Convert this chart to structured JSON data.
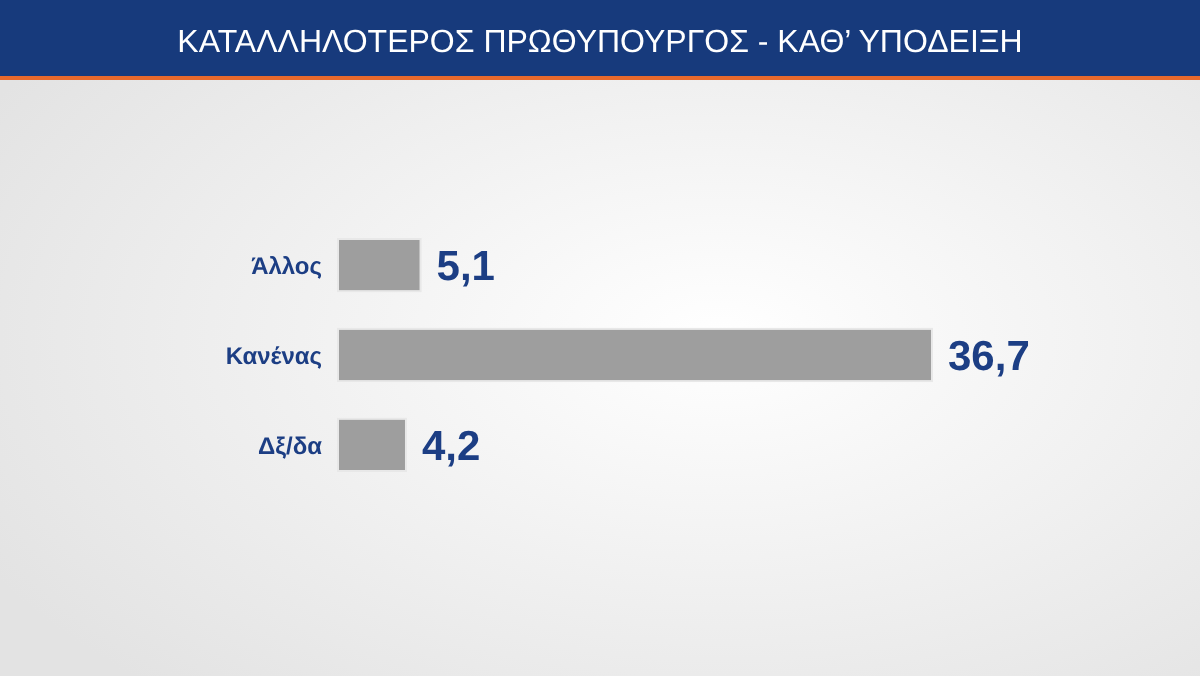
{
  "chart_data": {
    "type": "bar",
    "orientation": "horizontal",
    "title": "ΚΑΤΑΛΛΗΛΟΤΕΡΟΣ ΠΡΩΘΥΠΟΥΡΓΟΣ - ΚΑΘ’ ΥΠΟΔΕΙΞΗ",
    "categories": [
      "Άλλος",
      "Κανένας",
      "Δξ/δα"
    ],
    "values": [
      5.1,
      36.7,
      4.2
    ],
    "value_labels": [
      "5,1",
      "36,7",
      "4,2"
    ],
    "color": "#9e9e9e"
  }
}
